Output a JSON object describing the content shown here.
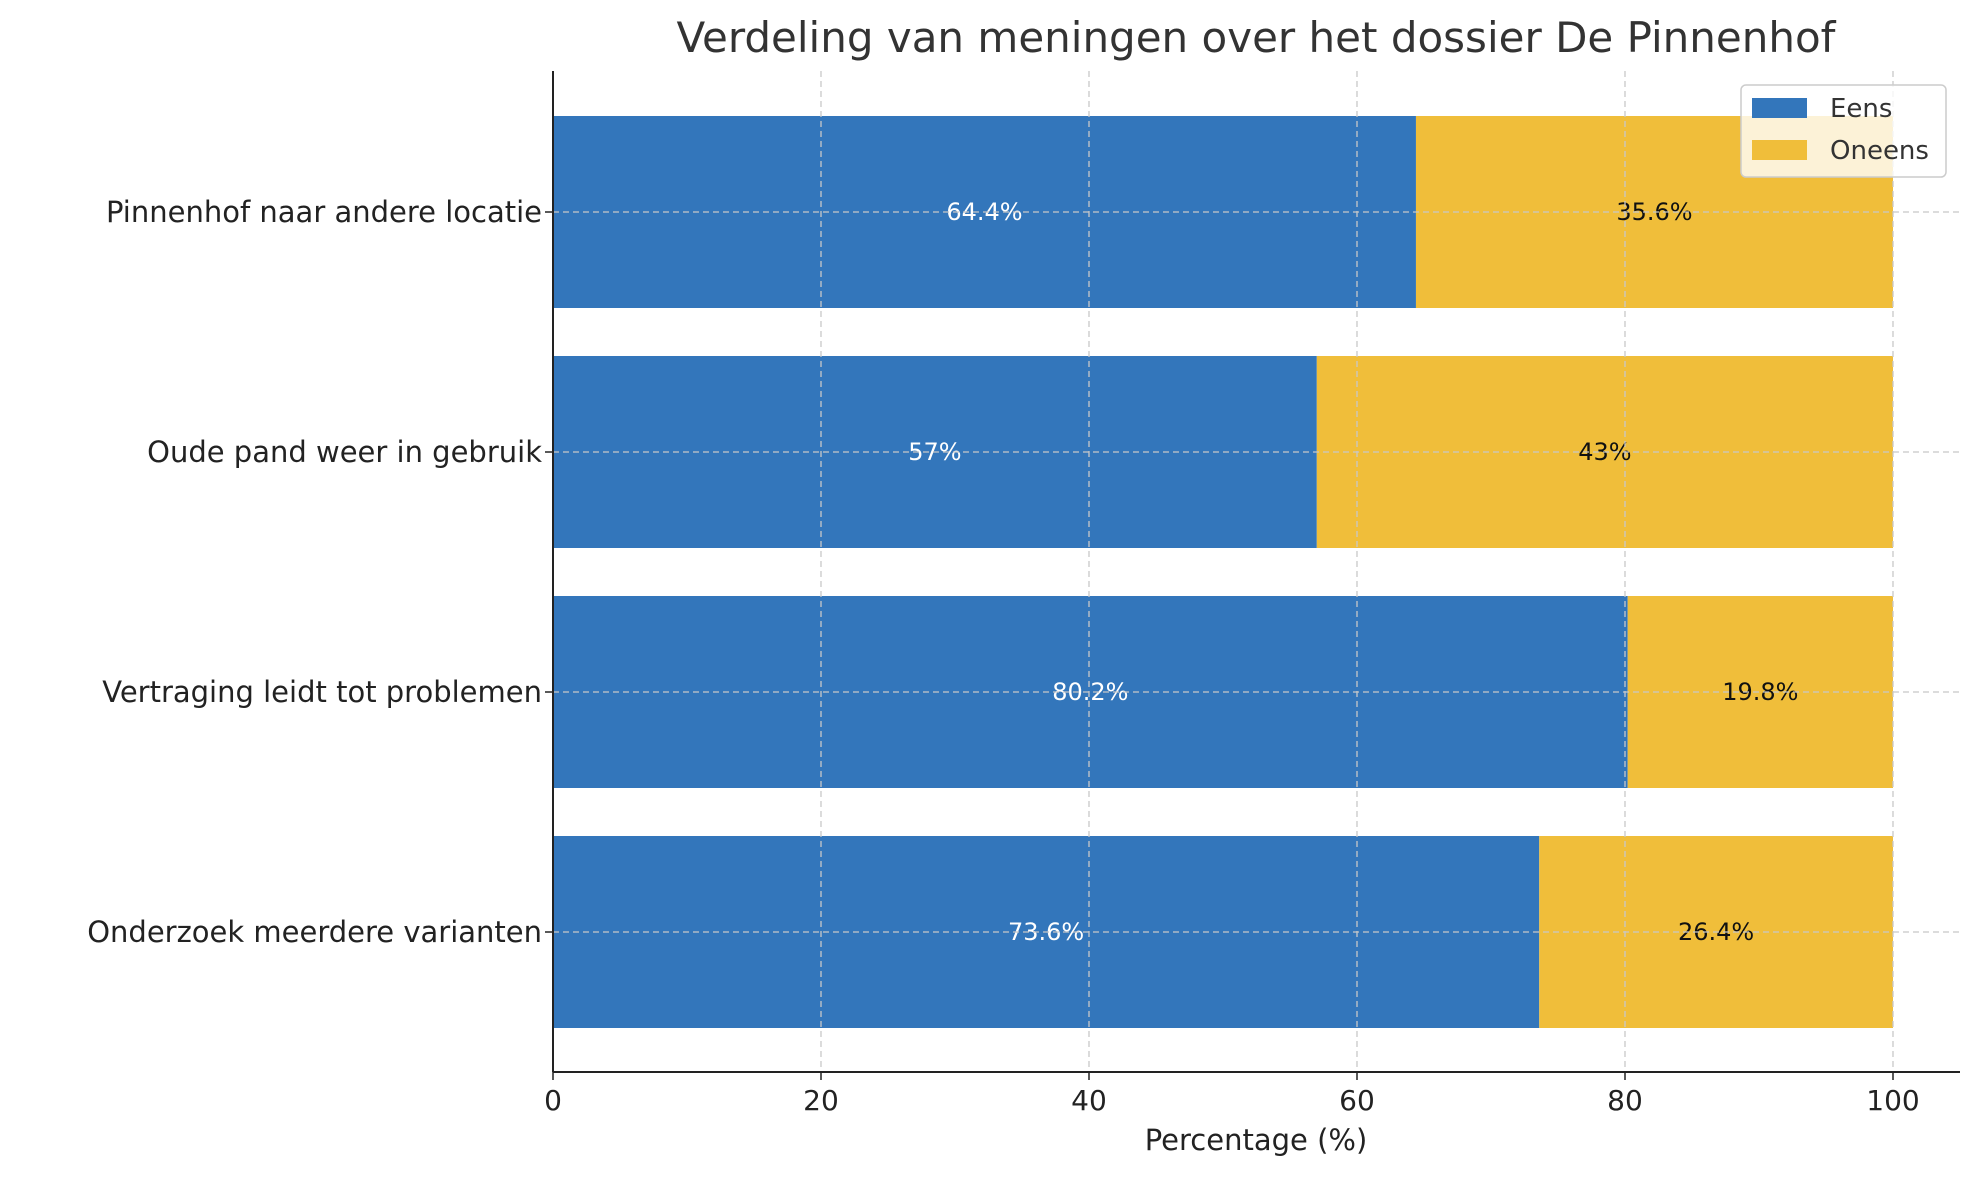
{
  "chart_data": {
    "type": "bar",
    "orientation": "horizontal",
    "stacked": true,
    "title": "Verdeling van meningen over het dossier De Pinnenhof",
    "xlabel": "Percentage (%)",
    "ylabel": "",
    "xlim": [
      0,
      105
    ],
    "xticks": [
      0,
      20,
      40,
      60,
      80,
      100
    ],
    "grid": true,
    "legend_position": "top-right",
    "categories": [
      "Pinnenhof naar andere locatie",
      "Oude pand weer in gebruik",
      "Vertraging leidt tot problemen",
      "Onderzoek meerdere varianten"
    ],
    "series": [
      {
        "name": "Eens",
        "color": "#3376bb",
        "values": [
          64.4,
          57,
          80.2,
          73.6
        ],
        "labels": [
          "64.4%",
          "57%",
          "80.2%",
          "73.6%"
        ]
      },
      {
        "name": "Oneens",
        "color": "#f0be3a",
        "values": [
          35.6,
          43,
          19.8,
          26.4
        ],
        "labels": [
          "35.6%",
          "43%",
          "19.8%",
          "26.4%"
        ]
      }
    ]
  }
}
